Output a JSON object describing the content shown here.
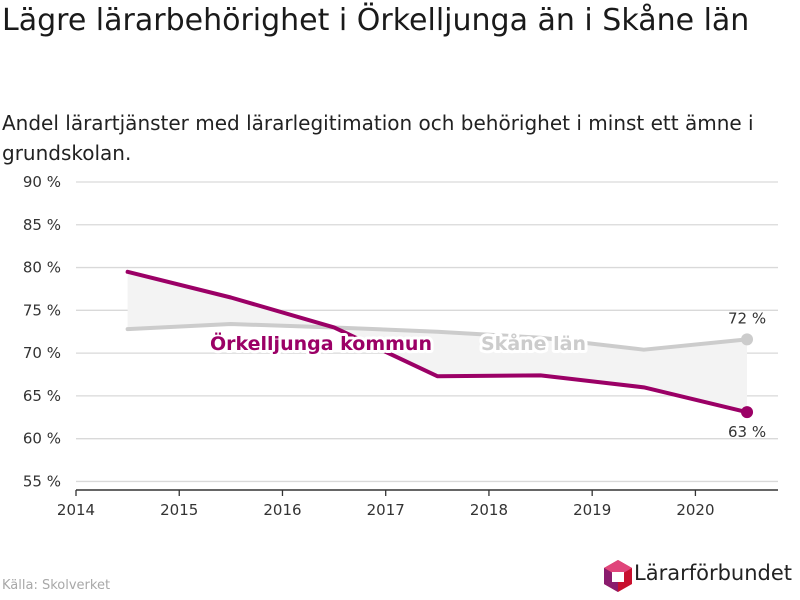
{
  "title": "Lägre lärarbehörighet i Örkelljunga än i Skåne län",
  "subtitle": "Andel lärartjänster med lärarlegitimation och behörighet i minst ett ämne i grundskolan.",
  "source": "Källa: Skolverket",
  "logo": {
    "text": "Lärarförbundet",
    "icon": "lararforbundet-logo-icon"
  },
  "colors": {
    "orkelljunga": "#9b0066",
    "skane": "#cccccc",
    "fill": "#f3f3f3",
    "grid": "#d9d9d9",
    "axis": "#333333"
  },
  "chart_data": {
    "type": "line",
    "x": [
      2014.5,
      2015.5,
      2016.5,
      2017.5,
      2018.5,
      2019.5,
      2020.5
    ],
    "xlim": [
      2014,
      2020.8
    ],
    "xticks": [
      2014,
      2015,
      2016,
      2017,
      2018,
      2019,
      2020
    ],
    "ylim": [
      54,
      90
    ],
    "yticks": [
      55,
      60,
      65,
      70,
      75,
      80,
      85,
      90
    ],
    "ytick_suffix": " %",
    "grid": true,
    "series": [
      {
        "name": "Örkelljunga kommun",
        "key": "orkelljunga",
        "values": [
          79.5,
          76.5,
          73.0,
          67.3,
          67.4,
          66.0,
          63.1
        ],
        "end_label": "63 %"
      },
      {
        "name": "Skåne län",
        "key": "skane",
        "values": [
          72.8,
          73.4,
          73.0,
          72.5,
          71.8,
          70.4,
          71.6
        ],
        "end_label": "72 %"
      }
    ]
  }
}
